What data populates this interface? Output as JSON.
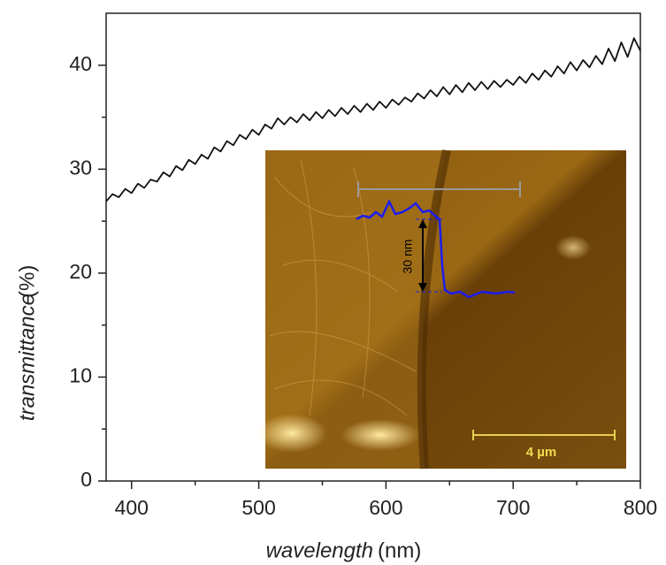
{
  "chart_data": {
    "type": "line",
    "x_label": "wavelength",
    "x_unit": "(nm)",
    "y_label": "transmittance",
    "y_unit": "(%)",
    "xlim": [
      380,
      800
    ],
    "ylim": [
      0,
      45
    ],
    "xticks": [
      400,
      500,
      600,
      700,
      800
    ],
    "yticks": [
      0,
      10,
      20,
      30,
      40
    ],
    "xminorticks": [
      450,
      550,
      650,
      750
    ],
    "yminorticks": [
      5,
      15,
      25,
      35
    ],
    "annotations": [
      "30 nm",
      "4 µm"
    ],
    "x": [
      380,
      385,
      390,
      395,
      400,
      405,
      410,
      415,
      420,
      425,
      430,
      435,
      440,
      445,
      450,
      455,
      460,
      465,
      470,
      475,
      480,
      485,
      490,
      495,
      500,
      505,
      510,
      515,
      520,
      525,
      530,
      535,
      540,
      545,
      550,
      555,
      560,
      565,
      570,
      575,
      580,
      585,
      590,
      595,
      600,
      605,
      610,
      615,
      620,
      625,
      630,
      635,
      640,
      645,
      650,
      655,
      660,
      665,
      670,
      675,
      680,
      685,
      690,
      695,
      700,
      705,
      710,
      715,
      720,
      725,
      730,
      735,
      740,
      745,
      750,
      755,
      760,
      765,
      770,
      775,
      780,
      785,
      790,
      795,
      800
    ],
    "series": [
      {
        "color": "#111111",
        "values": [
          26.9,
          27.6,
          27.3,
          28.1,
          27.7,
          28.6,
          28.2,
          29.0,
          28.8,
          29.7,
          29.3,
          30.3,
          29.9,
          30.9,
          30.5,
          31.4,
          31.0,
          32.1,
          31.7,
          32.7,
          32.3,
          33.3,
          32.9,
          33.8,
          33.3,
          34.3,
          33.9,
          34.9,
          34.3,
          35.0,
          34.5,
          35.3,
          34.7,
          35.5,
          34.9,
          35.7,
          35.1,
          35.9,
          35.3,
          36.1,
          35.5,
          36.3,
          35.7,
          36.5,
          35.9,
          36.7,
          36.2,
          36.9,
          36.5,
          37.3,
          36.8,
          37.6,
          37.0,
          37.9,
          37.2,
          38.1,
          37.4,
          38.3,
          37.6,
          38.4,
          37.7,
          38.5,
          37.9,
          38.6,
          38.1,
          38.9,
          38.3,
          39.2,
          38.6,
          39.5,
          38.9,
          39.9,
          39.2,
          40.3,
          39.5,
          40.5,
          39.8,
          40.9,
          40.1,
          41.6,
          40.4,
          42.2,
          40.8,
          42.6,
          41.4
        ]
      }
    ]
  }
}
